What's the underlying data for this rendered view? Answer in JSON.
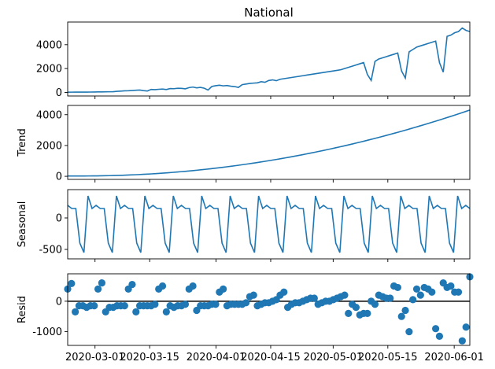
{
  "chart_data": [
    {
      "type": "line",
      "title": "National",
      "ylabel": "",
      "ylim": [
        -300,
        5900
      ],
      "yticks": [
        0,
        2000,
        4000
      ],
      "color": "#1f77b4",
      "values": [
        20,
        22,
        24,
        25,
        27,
        28,
        30,
        35,
        40,
        45,
        50,
        55,
        60,
        90,
        110,
        130,
        140,
        160,
        180,
        200,
        150,
        120,
        250,
        230,
        260,
        280,
        240,
        320,
        310,
        350,
        340,
        300,
        400,
        450,
        380,
        420,
        350,
        200,
        500,
        560,
        600,
        550,
        580,
        520,
        490,
        420,
        650,
        700,
        750,
        780,
        800,
        900,
        850,
        1000,
        1050,
        980,
        1100,
        1150,
        1200,
        1250,
        1300,
        1350,
        1400,
        1450,
        1500,
        1550,
        1600,
        1650,
        1700,
        1750,
        1800,
        1850,
        1900,
        2000,
        2100,
        2200,
        2300,
        2400,
        2500,
        1500,
        1000,
        2600,
        2800,
        2900,
        3000,
        3100,
        3200,
        3300,
        1800,
        1200,
        3400,
        3600,
        3800,
        3900,
        4000,
        4100,
        4200,
        4300,
        2500,
        1700,
        4700,
        4800,
        5000,
        5100,
        5400,
        5200,
        5100
      ]
    },
    {
      "type": "line",
      "title": "",
      "ylabel": "Trend",
      "ylim": [
        -200,
        4600
      ],
      "yticks": [
        0,
        2000,
        4000
      ],
      "color": "#1f77b4",
      "values": [
        20,
        20,
        20,
        21,
        22,
        23,
        25,
        28,
        32,
        37,
        43,
        50,
        58,
        67,
        77,
        88,
        100,
        113,
        127,
        142,
        158,
        175,
        193,
        212,
        232,
        253,
        275,
        298,
        322,
        347,
        373,
        400,
        428,
        457,
        487,
        518,
        550,
        583,
        617,
        652,
        688,
        725,
        763,
        802,
        842,
        883,
        925,
        968,
        1012,
        1057,
        1103,
        1150,
        1198,
        1247,
        1297,
        1348,
        1400,
        1453,
        1507,
        1562,
        1618,
        1675,
        1733,
        1792,
        1852,
        1913,
        1975,
        2038,
        2102,
        2167,
        2233,
        2300,
        2368,
        2437,
        2507,
        2578,
        2650,
        2723,
        2797,
        2872,
        2948,
        3025,
        3103,
        3182,
        3262,
        3343,
        3425,
        3508,
        3592,
        3677,
        3763,
        3850,
        3938,
        4027,
        4117,
        4208,
        4300
      ]
    },
    {
      "type": "line",
      "title": "",
      "ylabel": "Seasonal",
      "ylim": [
        -650,
        450
      ],
      "yticks": [
        -500,
        0
      ],
      "color": "#1f77b4",
      "values": [
        200,
        150,
        150,
        -400,
        -550,
        350,
        150,
        200,
        150,
        150,
        -400,
        -550,
        350,
        150,
        200,
        150,
        150,
        -400,
        -550,
        350,
        150,
        200,
        150,
        150,
        -400,
        -550,
        350,
        150,
        200,
        150,
        150,
        -400,
        -550,
        350,
        150,
        200,
        150,
        150,
        -400,
        -550,
        350,
        150,
        200,
        150,
        150,
        -400,
        -550,
        350,
        150,
        200,
        150,
        150,
        -400,
        -550,
        350,
        150,
        200,
        150,
        150,
        -400,
        -550,
        350,
        150,
        200,
        150,
        150,
        -400,
        -550,
        350,
        150,
        200,
        150,
        150,
        -400,
        -550,
        350,
        150,
        200,
        150,
        150,
        -400,
        -550,
        350,
        150,
        200,
        150,
        150,
        -400,
        -550,
        350,
        150,
        200,
        150,
        150,
        -400,
        -550,
        350,
        150,
        200,
        150
      ]
    },
    {
      "type": "scatter",
      "title": "",
      "ylabel": "Resid",
      "ylim": [
        -1450,
        900
      ],
      "yticks": [
        -1000,
        0
      ],
      "baseline": 0,
      "color": "#1f77b4",
      "values": [
        400,
        580,
        -350,
        -150,
        -150,
        -200,
        -150,
        -150,
        400,
        600,
        -350,
        -200,
        -200,
        -150,
        -150,
        -150,
        400,
        550,
        -350,
        -150,
        -150,
        -150,
        -150,
        -100,
        400,
        500,
        -350,
        -150,
        -200,
        -150,
        -150,
        -100,
        400,
        500,
        -300,
        -150,
        -150,
        -150,
        -100,
        -100,
        300,
        400,
        -150,
        -100,
        -100,
        -100,
        -100,
        -50,
        150,
        200,
        -150,
        -100,
        -50,
        -50,
        0,
        50,
        200,
        300,
        -200,
        -100,
        -50,
        -50,
        0,
        50,
        100,
        100,
        -100,
        -50,
        0,
        0,
        50,
        100,
        150,
        200,
        -400,
        -100,
        -200,
        -450,
        -400,
        -400,
        0,
        -100,
        200,
        150,
        100,
        100,
        500,
        450,
        -500,
        -300,
        -1000,
        50,
        400,
        200,
        450,
        400,
        300,
        -900,
        -1150,
        600,
        450,
        500,
        300,
        300,
        -1300,
        -850,
        800
      ]
    }
  ],
  "x_axis": {
    "start": "2020-02-23",
    "end": "2020-06-05",
    "ticks": [
      "2020-03-01",
      "2020-03-15",
      "2020-04-01",
      "2020-04-15",
      "2020-05-01",
      "2020-05-15",
      "2020-06-01"
    ]
  }
}
